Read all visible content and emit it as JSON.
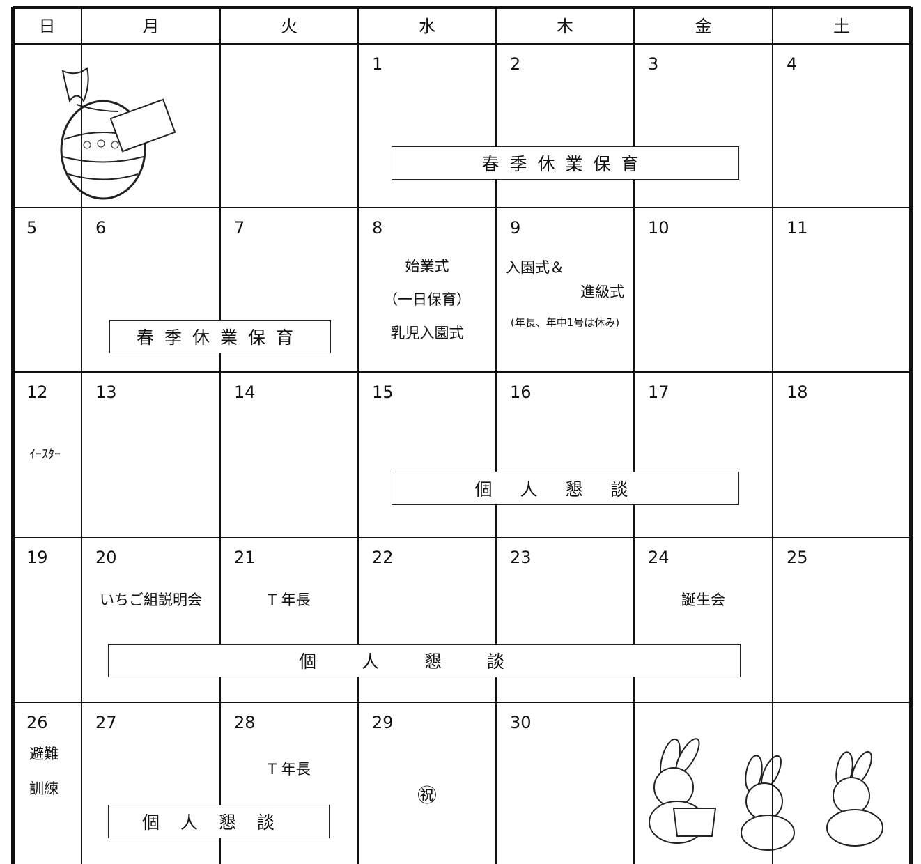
{
  "weekdays": [
    "日",
    "月",
    "火",
    "水",
    "木",
    "金",
    "土"
  ],
  "weeks": [
    [
      null,
      null,
      null,
      {
        "date": "1",
        "notes": []
      },
      {
        "date": "2",
        "notes": []
      },
      {
        "date": "3",
        "notes": []
      },
      {
        "date": "4",
        "notes": []
      }
    ],
    [
      {
        "date": "5",
        "notes": []
      },
      {
        "date": "6",
        "notes": []
      },
      {
        "date": "7",
        "notes": []
      },
      {
        "date": "8",
        "notes": [
          "始業式",
          "（一日保育）",
          "乳児入園式"
        ]
      },
      {
        "date": "9",
        "notes": [
          "入園式＆",
          "進級式",
          "(年長、年中1号は休み)"
        ]
      },
      {
        "date": "10",
        "notes": []
      },
      {
        "date": "11",
        "notes": []
      }
    ],
    [
      {
        "date": "12",
        "notes": [
          "ｲｰｽﾀｰ"
        ]
      },
      {
        "date": "13",
        "notes": []
      },
      {
        "date": "14",
        "notes": []
      },
      {
        "date": "15",
        "notes": []
      },
      {
        "date": "16",
        "notes": []
      },
      {
        "date": "17",
        "notes": []
      },
      {
        "date": "18",
        "notes": []
      }
    ],
    [
      {
        "date": "19",
        "notes": []
      },
      {
        "date": "20",
        "notes": [
          "いちご組説明会"
        ]
      },
      {
        "date": "21",
        "notes": [
          "T 年長"
        ]
      },
      {
        "date": "22",
        "notes": []
      },
      {
        "date": "23",
        "notes": []
      },
      {
        "date": "24",
        "notes": [
          "誕生会"
        ]
      },
      {
        "date": "25",
        "notes": []
      }
    ],
    [
      {
        "date": "26",
        "notes": [
          "避難",
          "訓練"
        ]
      },
      {
        "date": "27",
        "notes": []
      },
      {
        "date": "28",
        "notes": [
          "T 年長"
        ]
      },
      {
        "date": "29",
        "notes": [
          "㊗"
        ]
      },
      {
        "date": "30",
        "notes": []
      },
      null,
      null
    ]
  ],
  "banners": [
    "春季休業保育",
    "春季休業保育",
    "個人懇談",
    "個人懇談",
    "個人懇談"
  ]
}
